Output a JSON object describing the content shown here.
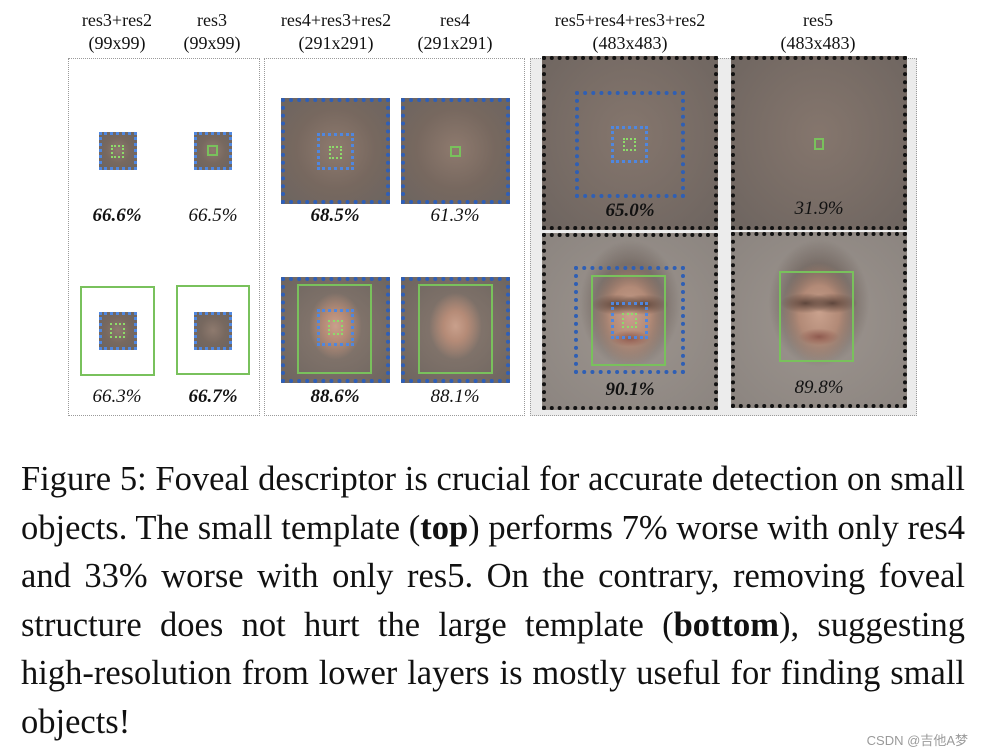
{
  "columns": [
    {
      "name": "res3+res2",
      "size": "(99x99)"
    },
    {
      "name": "res3",
      "size": "(99x99)"
    },
    {
      "name": "res4+res3+res2",
      "size": "(291x291)"
    },
    {
      "name": "res4",
      "size": "(291x291)"
    },
    {
      "name": "res5+res4+res3+res2",
      "size": "(483x483)"
    },
    {
      "name": "res5",
      "size": "(483x483)"
    }
  ],
  "top_template_accuracy": [
    "66.6%",
    "66.5%",
    "68.5%",
    "61.3%",
    "65.0%",
    "31.9%"
  ],
  "bottom_template_accuracy": [
    "66.3%",
    "66.7%",
    "88.6%",
    "88.1%",
    "90.1%",
    "89.8%"
  ],
  "caption": {
    "prefix": "Figure 5: Foveal descriptor is crucial for accurate detection on small objects.  The small template (",
    "top_word": "top",
    "middle": ") performs 7% worse with only res4 and 33% worse with only res5. On the contrary, removing foveal structure does not hurt the large template (",
    "bottom_word": "bottom",
    "suffix": "), suggesting high-resolution from lower layers is mostly useful for finding small objects!"
  },
  "watermark": "CSDN @吉他A梦"
}
